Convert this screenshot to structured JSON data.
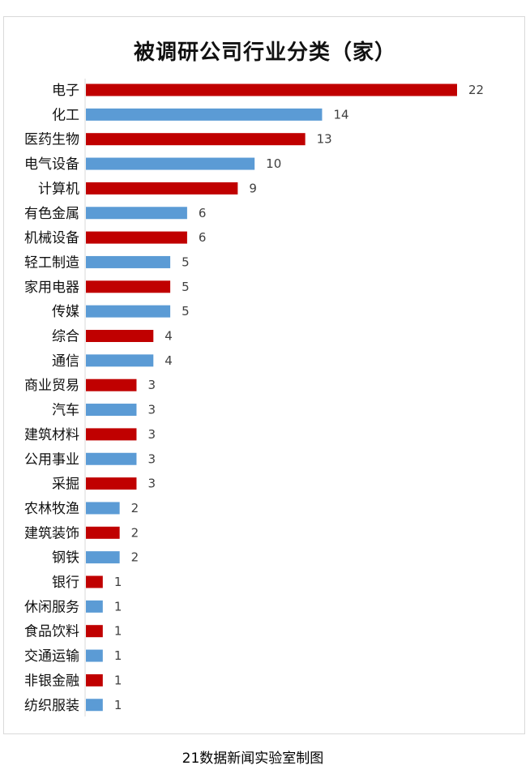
{
  "chart_data": {
    "type": "bar",
    "orientation": "horizontal",
    "title": "被调研公司行业分类（家）",
    "categories": [
      "电子",
      "化工",
      "医药生物",
      "电气设备",
      "计算机",
      "有色金属",
      "机械设备",
      "轻工制造",
      "家用电器",
      "传媒",
      "综合",
      "通信",
      "商业贸易",
      "汽车",
      "建筑材料",
      "公用事业",
      "采掘",
      "农林牧渔",
      "建筑装饰",
      "钢铁",
      "银行",
      "休闲服务",
      "食品饮料",
      "交通运输",
      "非银金融",
      "纺织服装"
    ],
    "values": [
      22,
      14,
      13,
      10,
      9,
      6,
      6,
      5,
      5,
      5,
      4,
      4,
      3,
      3,
      3,
      3,
      3,
      2,
      2,
      2,
      1,
      1,
      1,
      1,
      1,
      1
    ],
    "colors": [
      "#c00000",
      "#5b9bd5"
    ],
    "xlim": [
      0,
      22
    ],
    "grid": false,
    "legend": "none",
    "data_labels": true
  },
  "footer": "21数据新闻实验室制图"
}
